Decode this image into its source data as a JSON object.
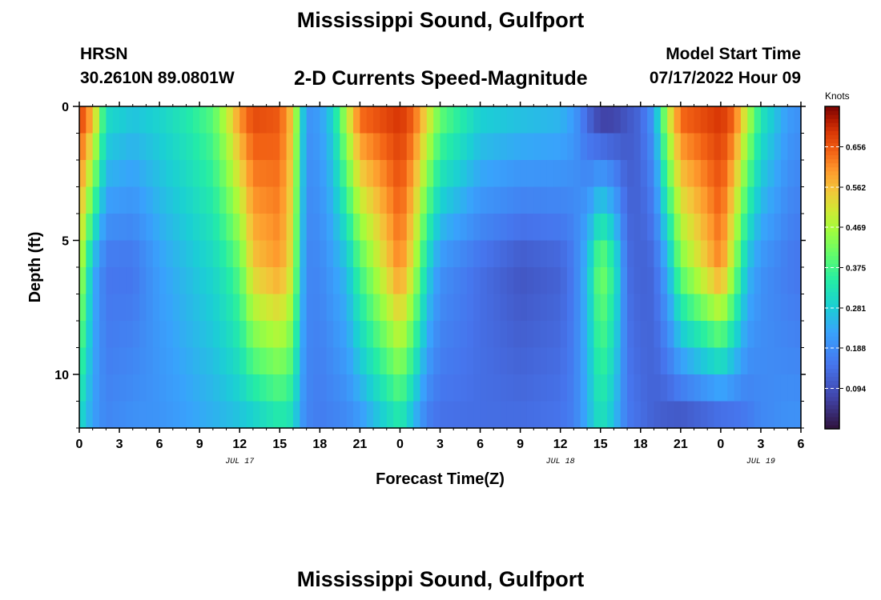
{
  "chart_data": {
    "type": "heatmap",
    "title": "Mississippi Sound, Gulfport",
    "subtitle": "2-D Currents Speed-Magnitude",
    "station": "HRSN",
    "location": "30.2610N  89.0801W",
    "model_start_label": "Model Start Time",
    "model_start_value": "07/17/2022 Hour 09",
    "xlabel": "Forecast Time(Z)",
    "ylabel": "Depth (ft)",
    "x_hours": [
      0,
      54
    ],
    "x_tick_hours": [
      0,
      3,
      6,
      9,
      12,
      15,
      18,
      21,
      24,
      27,
      30,
      33,
      36,
      39,
      42,
      45,
      48,
      51,
      54
    ],
    "x_tick_labels": [
      "0",
      "3",
      "6",
      "9",
      "12",
      "15",
      "18",
      "21",
      "0",
      "3",
      "6",
      "9",
      "12",
      "15",
      "18",
      "21",
      "0",
      "3",
      "6"
    ],
    "date_labels": [
      {
        "hour": 12,
        "text": "JUL 17"
      },
      {
        "hour": 36,
        "text": "JUL 18"
      },
      {
        "hour": 51,
        "text": "JUL 19"
      }
    ],
    "ylim": [
      0,
      12
    ],
    "y_ticks": [
      0,
      5,
      10
    ],
    "y_minor_ticks": [
      1,
      2,
      3,
      4,
      6,
      7,
      8,
      9,
      11,
      12
    ],
    "colorbar": {
      "label": "Knots",
      "range": [
        0,
        0.75
      ],
      "ticks": [
        "0.656",
        "0.562",
        "0.469",
        "0.375",
        "0.281",
        "0.188",
        "0.094"
      ],
      "tick_values": [
        0.656,
        0.562,
        0.469,
        0.375,
        0.281,
        0.188,
        0.094
      ]
    },
    "value_knots": [
      {
        "hour": 0,
        "surface": 0.7,
        "mid": 0.5,
        "bottom": 0.3
      },
      {
        "hour": 1,
        "surface": 0.6,
        "mid": 0.25,
        "bottom": 0.22
      },
      {
        "hour": 2,
        "surface": 0.32,
        "mid": 0.15,
        "bottom": 0.18
      },
      {
        "hour": 4,
        "surface": 0.28,
        "mid": 0.15,
        "bottom": 0.2
      },
      {
        "hour": 6,
        "surface": 0.3,
        "mid": 0.22,
        "bottom": 0.2
      },
      {
        "hour": 8,
        "surface": 0.34,
        "mid": 0.26,
        "bottom": 0.22
      },
      {
        "hour": 10,
        "surface": 0.4,
        "mid": 0.3,
        "bottom": 0.24
      },
      {
        "hour": 11,
        "surface": 0.5,
        "mid": 0.34,
        "bottom": 0.25
      },
      {
        "hour": 12,
        "surface": 0.62,
        "mid": 0.4,
        "bottom": 0.26
      },
      {
        "hour": 13,
        "surface": 0.68,
        "mid": 0.55,
        "bottom": 0.27
      },
      {
        "hour": 15,
        "surface": 0.66,
        "mid": 0.6,
        "bottom": 0.32
      },
      {
        "hour": 16,
        "surface": 0.55,
        "mid": 0.5,
        "bottom": 0.3
      },
      {
        "hour": 16.5,
        "surface": 0.35,
        "mid": 0.3,
        "bottom": 0.22
      },
      {
        "hour": 17,
        "surface": 0.2,
        "mid": 0.18,
        "bottom": 0.18
      },
      {
        "hour": 18,
        "surface": 0.22,
        "mid": 0.18,
        "bottom": 0.16
      },
      {
        "hour": 19,
        "surface": 0.3,
        "mid": 0.22,
        "bottom": 0.17
      },
      {
        "hour": 20,
        "surface": 0.5,
        "mid": 0.26,
        "bottom": 0.18
      },
      {
        "hour": 21,
        "surface": 0.66,
        "mid": 0.38,
        "bottom": 0.2
      },
      {
        "hour": 24,
        "surface": 0.7,
        "mid": 0.62,
        "bottom": 0.32
      },
      {
        "hour": 25,
        "surface": 0.66,
        "mid": 0.5,
        "bottom": 0.24
      },
      {
        "hour": 26,
        "surface": 0.55,
        "mid": 0.3,
        "bottom": 0.16
      },
      {
        "hour": 27,
        "surface": 0.42,
        "mid": 0.2,
        "bottom": 0.14
      },
      {
        "hour": 30,
        "surface": 0.3,
        "mid": 0.14,
        "bottom": 0.14
      },
      {
        "hour": 33,
        "surface": 0.28,
        "mid": 0.1,
        "bottom": 0.14
      },
      {
        "hour": 36,
        "surface": 0.26,
        "mid": 0.12,
        "bottom": 0.15
      },
      {
        "hour": 37,
        "surface": 0.22,
        "mid": 0.16,
        "bottom": 0.17
      },
      {
        "hour": 38,
        "surface": 0.12,
        "mid": 0.26,
        "bottom": 0.24
      },
      {
        "hour": 39,
        "surface": 0.04,
        "mid": 0.44,
        "bottom": 0.32
      },
      {
        "hour": 40,
        "surface": 0.05,
        "mid": 0.35,
        "bottom": 0.26
      },
      {
        "hour": 41,
        "surface": 0.1,
        "mid": 0.14,
        "bottom": 0.16
      },
      {
        "hour": 42,
        "surface": 0.13,
        "mid": 0.12,
        "bottom": 0.14
      },
      {
        "hour": 43,
        "surface": 0.22,
        "mid": 0.13,
        "bottom": 0.12
      },
      {
        "hour": 44,
        "surface": 0.5,
        "mid": 0.24,
        "bottom": 0.1
      },
      {
        "hour": 45,
        "surface": 0.66,
        "mid": 0.42,
        "bottom": 0.08
      },
      {
        "hour": 48,
        "surface": 0.7,
        "mid": 0.62,
        "bottom": 0.1
      },
      {
        "hour": 49,
        "surface": 0.66,
        "mid": 0.45,
        "bottom": 0.12
      },
      {
        "hour": 50,
        "surface": 0.5,
        "mid": 0.26,
        "bottom": 0.15
      },
      {
        "hour": 51,
        "surface": 0.34,
        "mid": 0.2,
        "bottom": 0.18
      },
      {
        "hour": 53,
        "surface": 0.22,
        "mid": 0.16,
        "bottom": 0.2
      },
      {
        "hour": 54,
        "surface": 0.2,
        "mid": 0.15,
        "bottom": 0.2
      }
    ]
  }
}
